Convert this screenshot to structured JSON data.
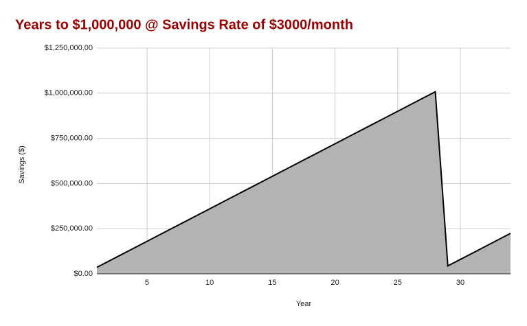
{
  "chart_data": {
    "type": "area",
    "title": "Years to $1,000,000 @ Savings Rate of $3000/month",
    "x_label": "Year",
    "y_label": "Savings ($)",
    "x": [
      1,
      2,
      3,
      4,
      5,
      6,
      7,
      8,
      9,
      10,
      11,
      12,
      13,
      14,
      15,
      16,
      17,
      18,
      19,
      20,
      21,
      22,
      23,
      24,
      25,
      26,
      27,
      28,
      29,
      30,
      31,
      32,
      33,
      34
    ],
    "series": [
      {
        "name": "Savings ($)",
        "color": "#b3b3b3",
        "values": [
          36000,
          72000,
          108000,
          144000,
          180000,
          216000,
          252000,
          288000,
          324000,
          360000,
          396000,
          432000,
          468000,
          504000,
          540000,
          576000,
          612000,
          648000,
          684000,
          720000,
          756000,
          792000,
          828000,
          864000,
          900000,
          936000,
          972000,
          1008000,
          44000,
          80000,
          116000,
          152000,
          188000,
          224000
        ]
      }
    ],
    "xlim": [
      1,
      34
    ],
    "xticks": [
      5,
      10,
      15,
      20,
      25,
      30
    ],
    "ylim": [
      0,
      1250000
    ],
    "yticks": [
      {
        "value": 0,
        "label": "$0.00"
      },
      {
        "value": 250000,
        "label": "$250,000.00"
      },
      {
        "value": 500000,
        "label": "$500,000.00"
      },
      {
        "value": 750000,
        "label": "$750,000.00"
      },
      {
        "value": 1000000,
        "label": "$1,000,000.00"
      },
      {
        "value": 1250000,
        "label": "$1,250,000.00"
      }
    ],
    "grid": true,
    "line_color": "#000000"
  }
}
